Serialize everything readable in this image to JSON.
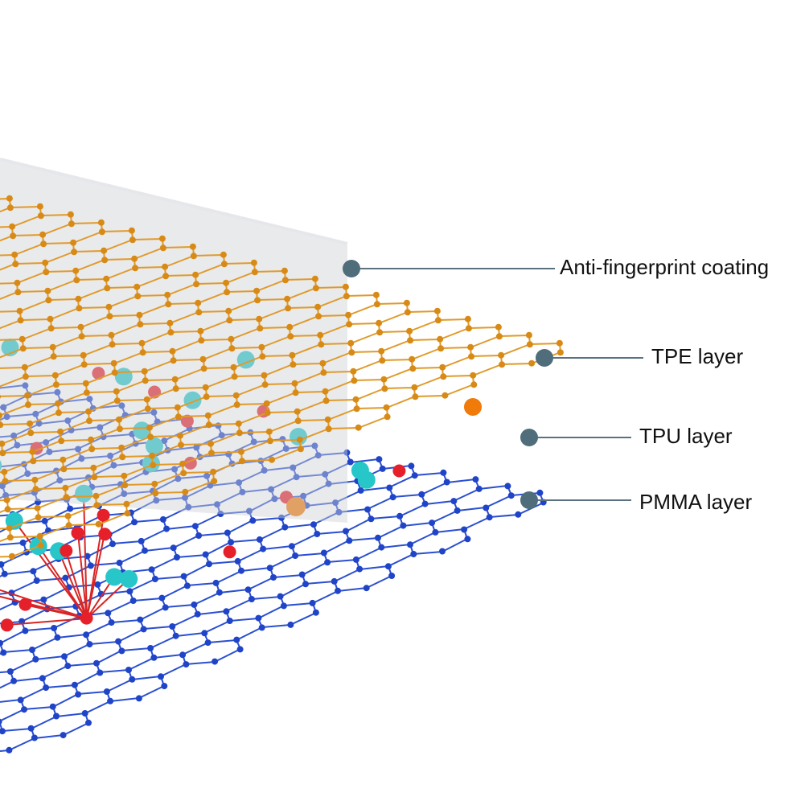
{
  "layers": [
    {
      "label": "Anti-fingerprint coating"
    },
    {
      "label": "TPE layer"
    },
    {
      "label": "TPU layer"
    },
    {
      "label": "PMMA layer"
    }
  ]
}
